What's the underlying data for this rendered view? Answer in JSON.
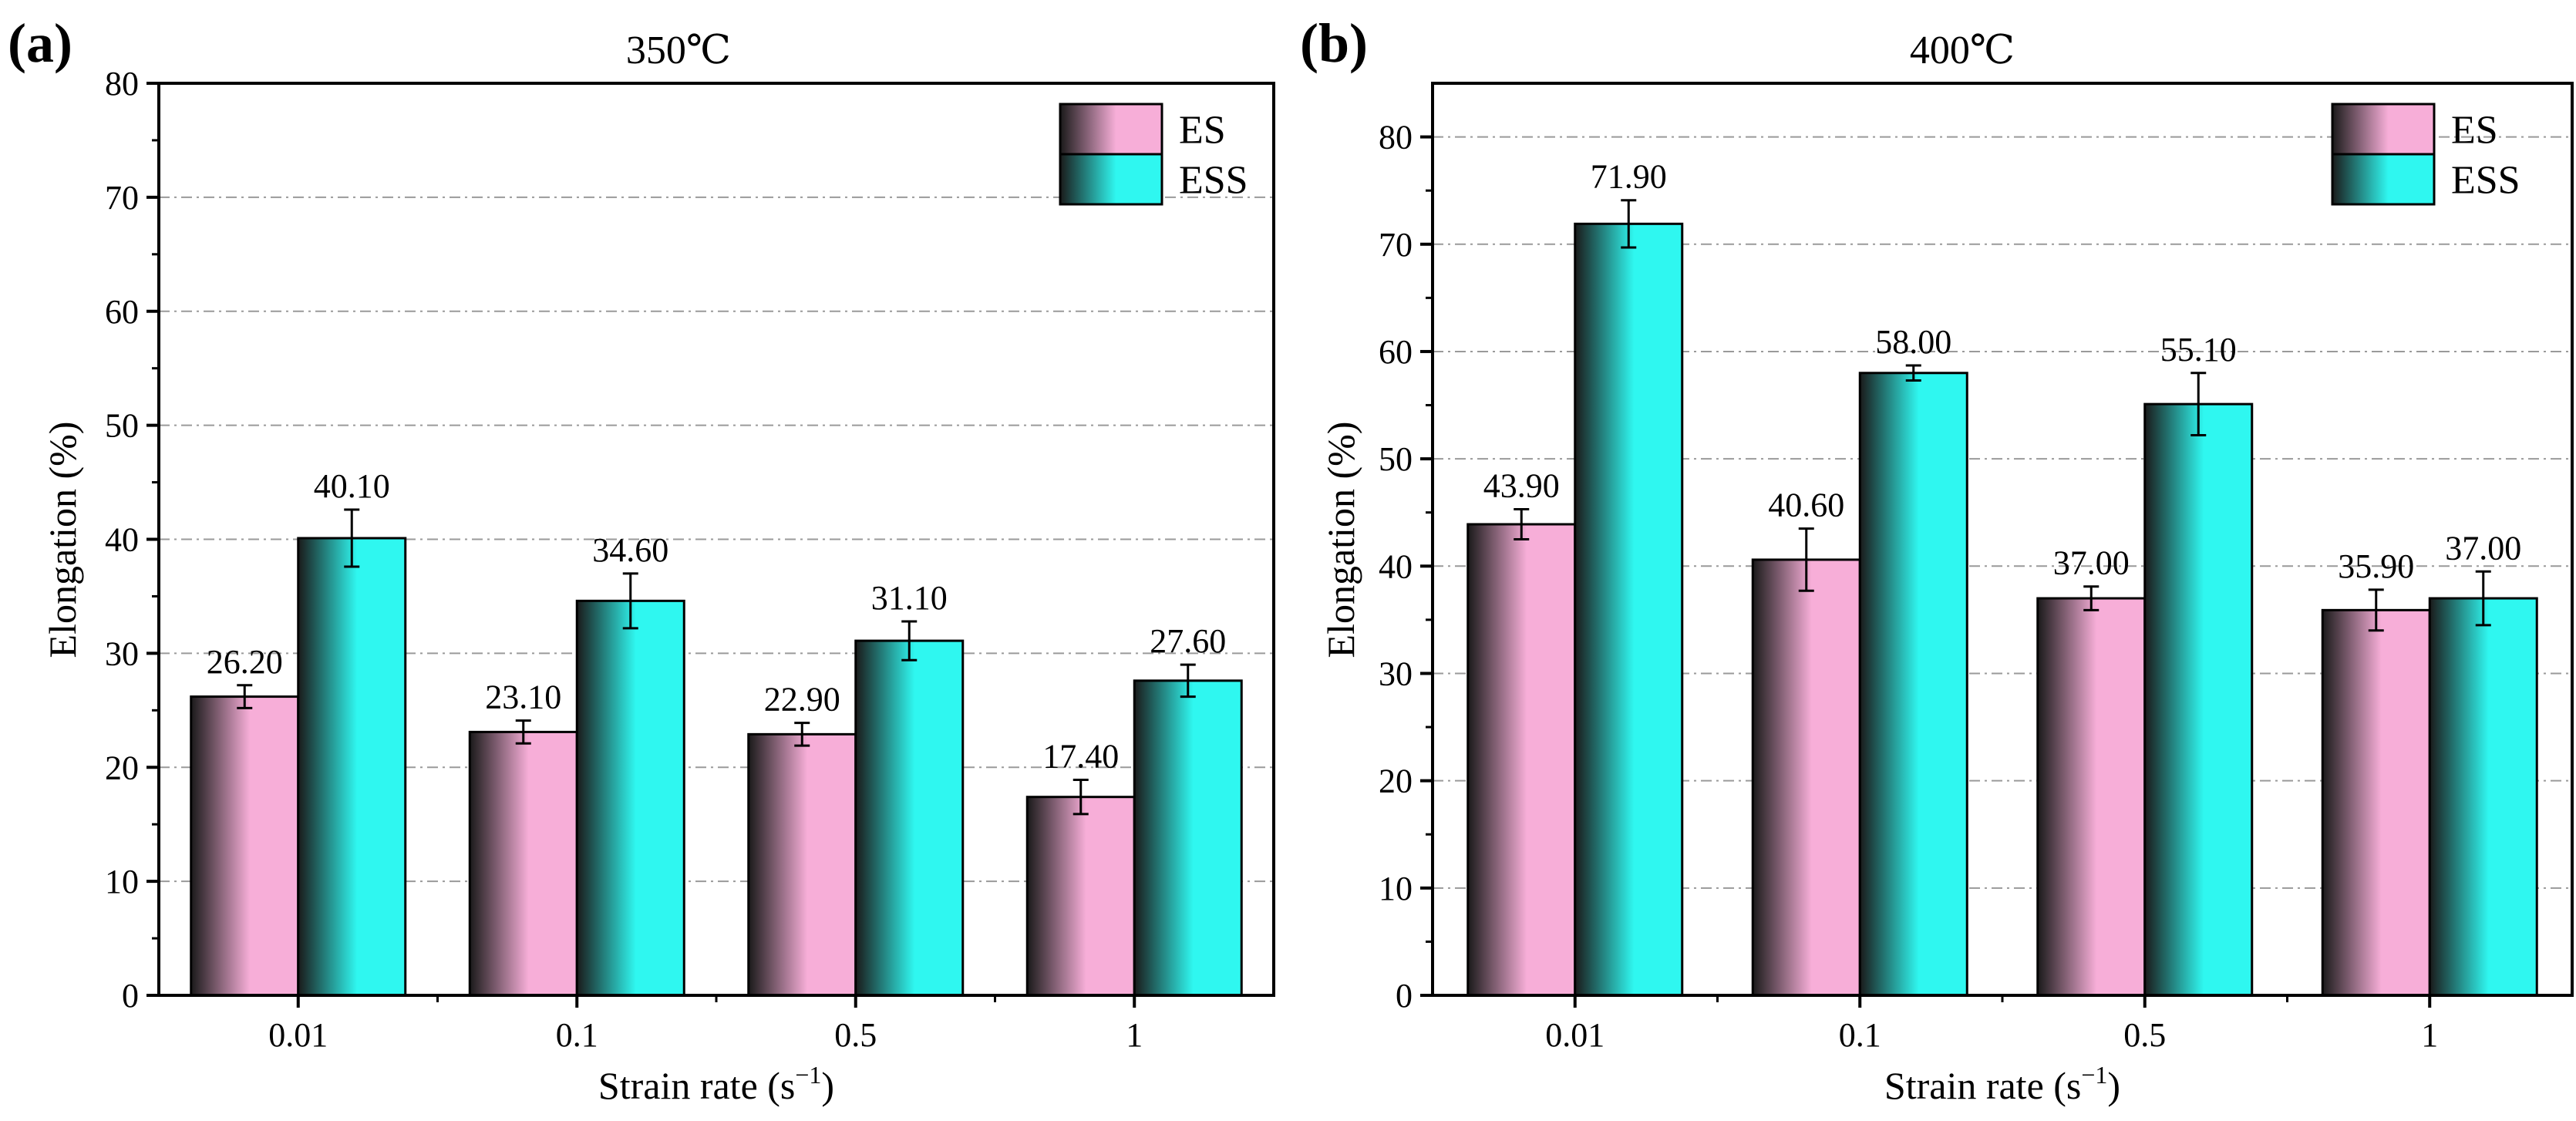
{
  "colors": {
    "ES": "#f7aed8",
    "ESS": "#2ff7f0",
    "dark": "#1a1a1a",
    "grid": "#9a9a9a"
  },
  "chart_data": [
    {
      "type": "bar",
      "panel": "(a)",
      "title": "350℃",
      "xlabel": "Strain rate (s",
      "xlabel_sup": "−1",
      "xlabel_end": ")",
      "ylabel": "Elongation (%)",
      "ylim": [
        0,
        80
      ],
      "yticks": [
        0,
        10,
        20,
        30,
        40,
        50,
        60,
        70,
        80
      ],
      "categories": [
        "0.01",
        "0.1",
        "0.5",
        "1"
      ],
      "legend_position": "top-right",
      "series": [
        {
          "name": "ES",
          "values": [
            26.2,
            23.1,
            22.9,
            17.4
          ],
          "labels": [
            "26.20",
            "23.10",
            "22.90",
            "17.40"
          ],
          "errors": [
            1.0,
            1.0,
            1.0,
            1.5
          ]
        },
        {
          "name": "ESS",
          "values": [
            40.1,
            34.6,
            31.1,
            27.6
          ],
          "labels": [
            "40.10",
            "34.60",
            "31.10",
            "27.60"
          ],
          "errors": [
            2.5,
            2.4,
            1.7,
            1.4
          ]
        }
      ]
    },
    {
      "type": "bar",
      "panel": "(b)",
      "title": "400℃",
      "xlabel": "Strain rate (s",
      "xlabel_sup": "−1",
      "xlabel_end": ")",
      "ylabel": "Elongation (%)",
      "ylim": [
        0,
        85
      ],
      "yticks": [
        0,
        10,
        20,
        30,
        40,
        50,
        60,
        70,
        80
      ],
      "categories": [
        "0.01",
        "0.1",
        "0.5",
        "1"
      ],
      "legend_position": "top-right",
      "series": [
        {
          "name": "ES",
          "values": [
            43.9,
            40.6,
            37.0,
            35.9
          ],
          "labels": [
            "43.90",
            "40.60",
            "37.00",
            "35.90"
          ],
          "errors": [
            1.4,
            2.9,
            1.1,
            1.9
          ]
        },
        {
          "name": "ESS",
          "values": [
            71.9,
            58.0,
            55.1,
            37.0
          ],
          "labels": [
            "71.90",
            "58.00",
            "55.10",
            "37.00"
          ],
          "errors": [
            2.2,
            0.7,
            2.9,
            2.5
          ]
        }
      ]
    }
  ]
}
